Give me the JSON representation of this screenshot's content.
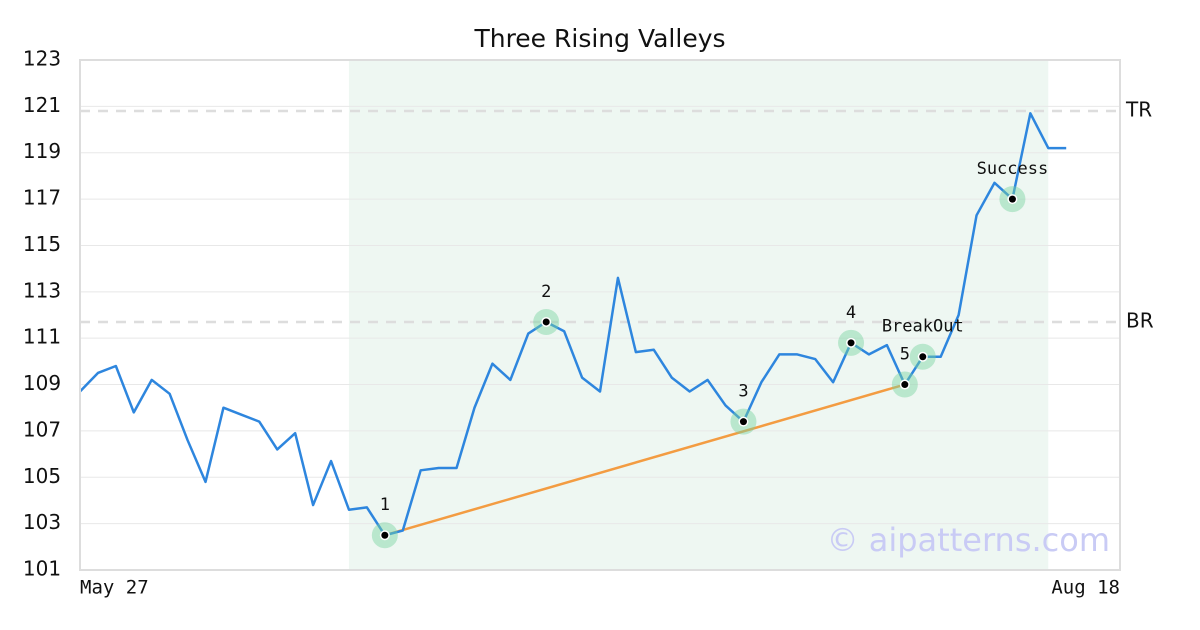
{
  "chart_data": {
    "type": "line",
    "title": "Three Rising Valleys",
    "x": [
      0,
      1,
      2,
      3,
      4,
      5,
      6,
      7,
      8,
      9,
      10,
      11,
      12,
      13,
      14,
      15,
      16,
      17,
      18,
      19,
      20,
      21,
      22,
      23,
      24,
      25,
      26,
      27,
      28,
      29,
      30,
      31,
      32,
      33,
      34,
      35,
      36,
      37,
      38,
      39,
      40,
      41,
      42,
      43,
      44,
      45,
      46,
      47,
      48,
      49,
      50,
      51,
      52,
      53,
      54,
      55
    ],
    "series": [
      {
        "color": "#2e86de",
        "values": [
          108.7,
          109.5,
          109.8,
          107.8,
          109.2,
          108.6,
          106.6,
          104.8,
          108.0,
          107.7,
          107.4,
          106.2,
          106.9,
          103.8,
          105.7,
          103.6,
          103.7,
          102.5,
          102.7,
          105.3,
          105.4,
          105.4,
          108.0,
          109.9,
          109.2,
          111.2,
          111.7,
          111.3,
          109.3,
          108.7,
          113.6,
          110.4,
          110.5,
          109.3,
          108.7,
          109.2,
          108.1,
          107.4,
          109.1,
          110.3,
          110.3,
          110.1,
          109.1,
          110.8,
          110.3,
          110.7,
          109.0,
          110.2,
          110.2,
          112.0,
          116.3,
          117.7,
          117.0,
          120.7,
          119.2,
          119.2
        ]
      }
    ],
    "xlim": [
      0,
      58
    ],
    "xticks": [
      {
        "value": 0,
        "label": "May 27"
      },
      {
        "value": 58,
        "label": "Aug 18"
      }
    ],
    "ylim": [
      101,
      123
    ],
    "yticks": [
      101,
      103,
      105,
      107,
      109,
      111,
      113,
      115,
      117,
      119,
      121,
      123
    ],
    "grid": true,
    "highlight": {
      "x": [
        15,
        54
      ],
      "color": "#eef7f2"
    },
    "levels": [
      {
        "label": "TR",
        "value": 120.8
      },
      {
        "label": "BR",
        "value": 111.7
      }
    ],
    "trendline": {
      "x": [
        17,
        46
      ],
      "y": [
        102.5,
        109.0
      ],
      "color": "#f39c42"
    },
    "points": [
      {
        "label": "1",
        "x": 17,
        "y": 102.5
      },
      {
        "label": "2",
        "x": 26,
        "y": 111.7
      },
      {
        "label": "3",
        "x": 37,
        "y": 107.4
      },
      {
        "label": "4",
        "x": 43,
        "y": 110.8
      },
      {
        "label": "5",
        "x": 46,
        "y": 109.0
      },
      {
        "label": "BreakOut",
        "x": 47,
        "y": 110.2
      },
      {
        "label": "Success",
        "x": 52,
        "y": 117.0
      }
    ],
    "watermark": "© aipatterns.com"
  }
}
